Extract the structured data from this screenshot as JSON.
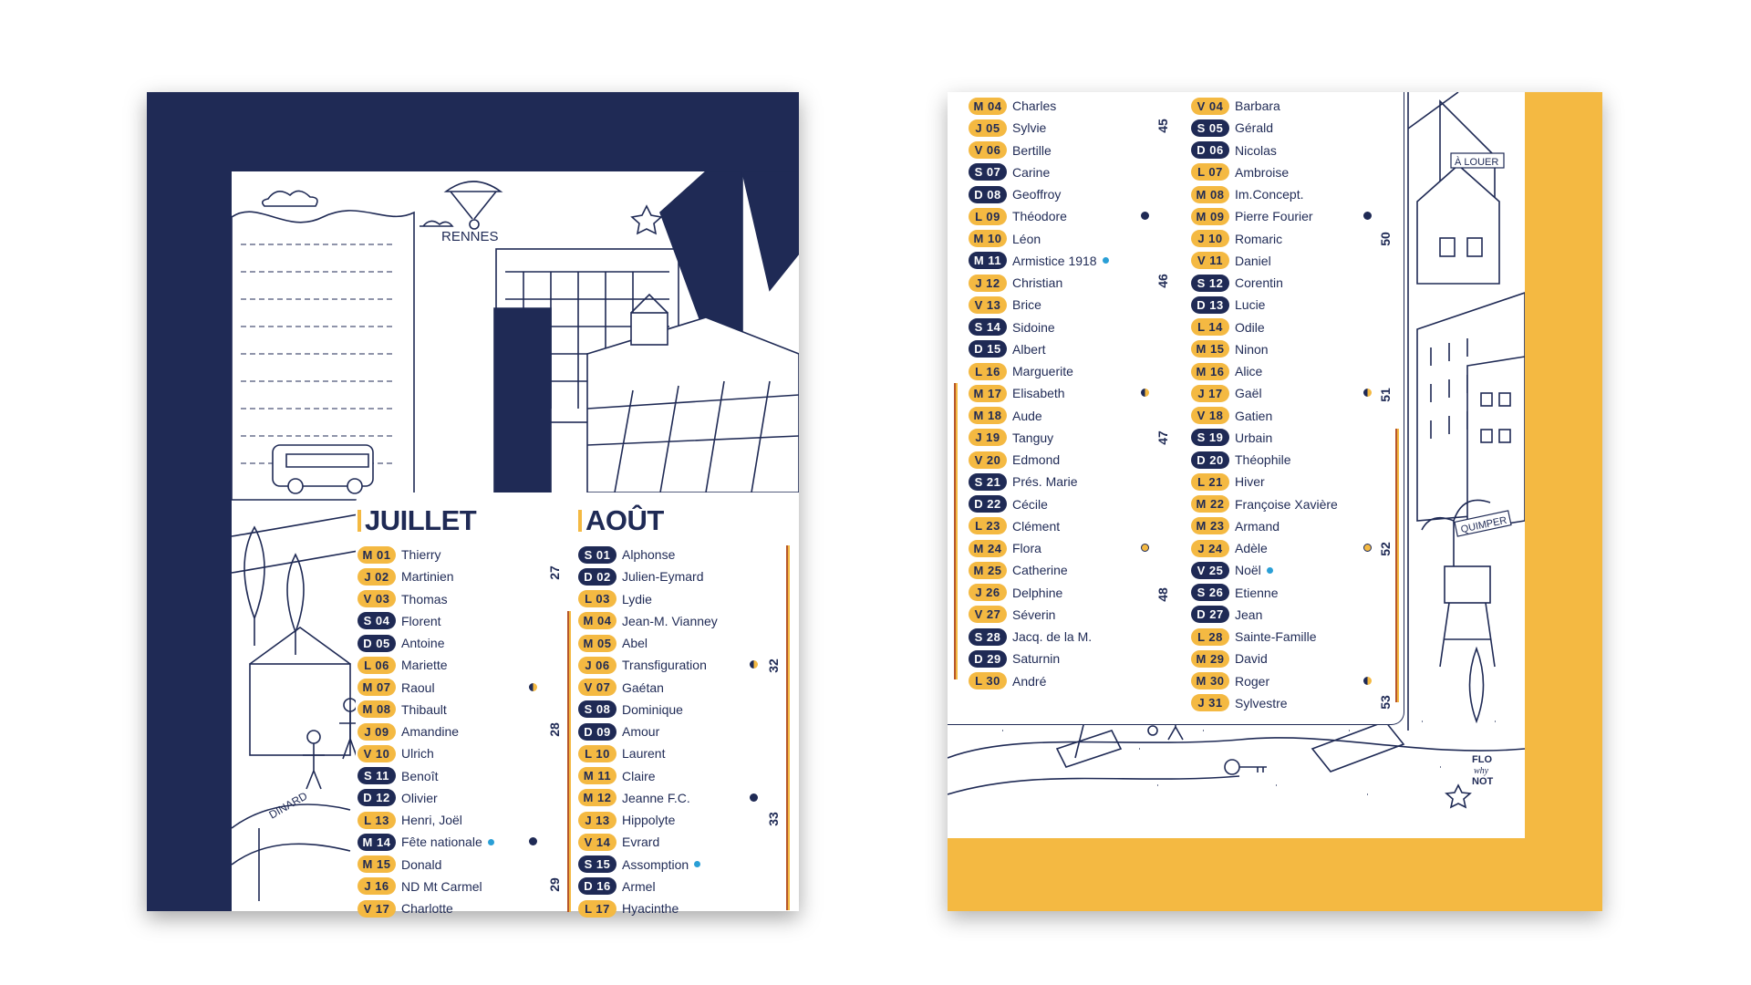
{
  "colors": {
    "navy": "#1f2a55",
    "yellow": "#f4b942",
    "holiday": "#2a9fd6"
  },
  "left_poster": {
    "illustration_labels": {
      "rennes": "RENNES",
      "dinard": "DINARD"
    },
    "months": [
      {
        "title": "JUILLET",
        "week_numbers": [
          "27",
          "28",
          "29"
        ],
        "days": [
          {
            "tag": "M 01",
            "name": "Thierry",
            "weekend": false,
            "holiday": false
          },
          {
            "tag": "J 02",
            "name": "Martinien",
            "weekend": false,
            "holiday": false
          },
          {
            "tag": "V 03",
            "name": "Thomas",
            "weekend": false,
            "holiday": false
          },
          {
            "tag": "S 04",
            "name": "Florent",
            "weekend": true,
            "holiday": false
          },
          {
            "tag": "D 05",
            "name": "Antoine",
            "weekend": true,
            "holiday": false
          },
          {
            "tag": "L 06",
            "name": "Mariette",
            "weekend": false,
            "holiday": false
          },
          {
            "tag": "M 07",
            "name": "Raoul",
            "weekend": false,
            "holiday": false,
            "moon": "half"
          },
          {
            "tag": "M 08",
            "name": "Thibault",
            "weekend": false,
            "holiday": false
          },
          {
            "tag": "J 09",
            "name": "Amandine",
            "weekend": false,
            "holiday": false
          },
          {
            "tag": "V 10",
            "name": "Ulrich",
            "weekend": false,
            "holiday": false
          },
          {
            "tag": "S 11",
            "name": "Benoît",
            "weekend": true,
            "holiday": false
          },
          {
            "tag": "D 12",
            "name": "Olivier",
            "weekend": true,
            "holiday": false
          },
          {
            "tag": "L 13",
            "name": "Henri, Joël",
            "weekend": false,
            "holiday": false
          },
          {
            "tag": "M 14",
            "name": "Fête nationale",
            "weekend": true,
            "holiday": true,
            "moon": "new"
          },
          {
            "tag": "M 15",
            "name": "Donald",
            "weekend": false,
            "holiday": false
          },
          {
            "tag": "J 16",
            "name": "ND Mt Carmel",
            "weekend": false,
            "holiday": false
          },
          {
            "tag": "V 17",
            "name": "Charlotte",
            "weekend": false,
            "holiday": false
          }
        ]
      },
      {
        "title": "AOÛT",
        "week_numbers": [
          "32",
          "33"
        ],
        "days": [
          {
            "tag": "S 01",
            "name": "Alphonse",
            "weekend": true,
            "holiday": false
          },
          {
            "tag": "D 02",
            "name": "Julien-Eymard",
            "weekend": true,
            "holiday": false
          },
          {
            "tag": "L 03",
            "name": "Lydie",
            "weekend": false,
            "holiday": false
          },
          {
            "tag": "M 04",
            "name": "Jean-M. Vianney",
            "weekend": false,
            "holiday": false
          },
          {
            "tag": "M 05",
            "name": "Abel",
            "weekend": false,
            "holiday": false
          },
          {
            "tag": "J 06",
            "name": "Transfiguration",
            "weekend": false,
            "holiday": false,
            "moon": "half"
          },
          {
            "tag": "V 07",
            "name": "Gaétan",
            "weekend": false,
            "holiday": false
          },
          {
            "tag": "S 08",
            "name": "Dominique",
            "weekend": true,
            "holiday": false
          },
          {
            "tag": "D 09",
            "name": "Amour",
            "weekend": true,
            "holiday": false
          },
          {
            "tag": "L 10",
            "name": "Laurent",
            "weekend": false,
            "holiday": false
          },
          {
            "tag": "M 11",
            "name": "Claire",
            "weekend": false,
            "holiday": false
          },
          {
            "tag": "M 12",
            "name": "Jeanne F.C.",
            "weekend": false,
            "holiday": false,
            "moon": "new"
          },
          {
            "tag": "J 13",
            "name": "Hippolyte",
            "weekend": false,
            "holiday": false
          },
          {
            "tag": "V 14",
            "name": "Evrard",
            "weekend": false,
            "holiday": false
          },
          {
            "tag": "S 15",
            "name": "Assomption",
            "weekend": true,
            "holiday": true
          },
          {
            "tag": "D 16",
            "name": "Armel",
            "weekend": true,
            "holiday": false
          },
          {
            "tag": "L 17",
            "name": "Hyacinthe",
            "weekend": false,
            "holiday": false
          }
        ]
      }
    ]
  },
  "right_poster": {
    "illustration_labels": {
      "a_louer": "À LOUER",
      "quimper": "QUIMPER",
      "brand": [
        "FLO",
        "why",
        "NOT"
      ]
    },
    "months": [
      {
        "week_numbers": [
          "45",
          "46",
          "47",
          "48"
        ],
        "days": [
          {
            "tag": "M 04",
            "name": "Charles",
            "weekend": false,
            "holiday": false
          },
          {
            "tag": "J 05",
            "name": "Sylvie",
            "weekend": false,
            "holiday": false
          },
          {
            "tag": "V 06",
            "name": "Bertille",
            "weekend": false,
            "holiday": false
          },
          {
            "tag": "S 07",
            "name": "Carine",
            "weekend": true,
            "holiday": false
          },
          {
            "tag": "D 08",
            "name": "Geoffroy",
            "weekend": true,
            "holiday": false
          },
          {
            "tag": "L 09",
            "name": "Théodore",
            "weekend": false,
            "holiday": false,
            "moon": "new"
          },
          {
            "tag": "M 10",
            "name": "Léon",
            "weekend": false,
            "holiday": false
          },
          {
            "tag": "M 11",
            "name": "Armistice 1918",
            "weekend": true,
            "holiday": true
          },
          {
            "tag": "J 12",
            "name": "Christian",
            "weekend": false,
            "holiday": false
          },
          {
            "tag": "V 13",
            "name": "Brice",
            "weekend": false,
            "holiday": false
          },
          {
            "tag": "S 14",
            "name": "Sidoine",
            "weekend": true,
            "holiday": false
          },
          {
            "tag": "D 15",
            "name": "Albert",
            "weekend": true,
            "holiday": false
          },
          {
            "tag": "L 16",
            "name": "Marguerite",
            "weekend": false,
            "holiday": false
          },
          {
            "tag": "M 17",
            "name": "Elisabeth",
            "weekend": false,
            "holiday": false,
            "moon": "half"
          },
          {
            "tag": "M 18",
            "name": "Aude",
            "weekend": false,
            "holiday": false
          },
          {
            "tag": "J 19",
            "name": "Tanguy",
            "weekend": false,
            "holiday": false
          },
          {
            "tag": "V 20",
            "name": "Edmond",
            "weekend": false,
            "holiday": false
          },
          {
            "tag": "S 21",
            "name": "Prés. Marie",
            "weekend": true,
            "holiday": false
          },
          {
            "tag": "D 22",
            "name": "Cécile",
            "weekend": true,
            "holiday": false
          },
          {
            "tag": "L 23",
            "name": "Clément",
            "weekend": false,
            "holiday": false
          },
          {
            "tag": "M 24",
            "name": "Flora",
            "weekend": false,
            "holiday": false,
            "moon": "full"
          },
          {
            "tag": "M 25",
            "name": "Catherine",
            "weekend": false,
            "holiday": false
          },
          {
            "tag": "J 26",
            "name": "Delphine",
            "weekend": false,
            "holiday": false
          },
          {
            "tag": "V 27",
            "name": "Séverin",
            "weekend": false,
            "holiday": false
          },
          {
            "tag": "S 28",
            "name": "Jacq. de la M.",
            "weekend": true,
            "holiday": false
          },
          {
            "tag": "D 29",
            "name": "Saturnin",
            "weekend": true,
            "holiday": false
          },
          {
            "tag": "L 30",
            "name": "André",
            "weekend": false,
            "holiday": false
          }
        ]
      },
      {
        "week_numbers": [
          "50",
          "51",
          "52",
          "53"
        ],
        "days": [
          {
            "tag": "V 04",
            "name": "Barbara",
            "weekend": false,
            "holiday": false
          },
          {
            "tag": "S 05",
            "name": "Gérald",
            "weekend": true,
            "holiday": false
          },
          {
            "tag": "D 06",
            "name": "Nicolas",
            "weekend": true,
            "holiday": false
          },
          {
            "tag": "L 07",
            "name": "Ambroise",
            "weekend": false,
            "holiday": false
          },
          {
            "tag": "M 08",
            "name": "Im.Concept.",
            "weekend": false,
            "holiday": false
          },
          {
            "tag": "M 09",
            "name": "Pierre Fourier",
            "weekend": false,
            "holiday": false,
            "moon": "new"
          },
          {
            "tag": "J 10",
            "name": "Romaric",
            "weekend": false,
            "holiday": false
          },
          {
            "tag": "V 11",
            "name": "Daniel",
            "weekend": false,
            "holiday": false
          },
          {
            "tag": "S 12",
            "name": "Corentin",
            "weekend": true,
            "holiday": false
          },
          {
            "tag": "D 13",
            "name": "Lucie",
            "weekend": true,
            "holiday": false
          },
          {
            "tag": "L 14",
            "name": "Odile",
            "weekend": false,
            "holiday": false
          },
          {
            "tag": "M 15",
            "name": "Ninon",
            "weekend": false,
            "holiday": false
          },
          {
            "tag": "M 16",
            "name": "Alice",
            "weekend": false,
            "holiday": false
          },
          {
            "tag": "J 17",
            "name": "Gaël",
            "weekend": false,
            "holiday": false,
            "moon": "half"
          },
          {
            "tag": "V 18",
            "name": "Gatien",
            "weekend": false,
            "holiday": false
          },
          {
            "tag": "S 19",
            "name": "Urbain",
            "weekend": true,
            "holiday": false
          },
          {
            "tag": "D 20",
            "name": "Théophile",
            "weekend": true,
            "holiday": false
          },
          {
            "tag": "L 21",
            "name": "Hiver",
            "weekend": false,
            "holiday": false
          },
          {
            "tag": "M 22",
            "name": "Françoise Xavière",
            "weekend": false,
            "holiday": false
          },
          {
            "tag": "M 23",
            "name": "Armand",
            "weekend": false,
            "holiday": false
          },
          {
            "tag": "J 24",
            "name": "Adèle",
            "weekend": false,
            "holiday": false,
            "moon": "full"
          },
          {
            "tag": "V 25",
            "name": "Noël",
            "weekend": true,
            "holiday": true
          },
          {
            "tag": "S 26",
            "name": "Etienne",
            "weekend": true,
            "holiday": false
          },
          {
            "tag": "D 27",
            "name": "Jean",
            "weekend": true,
            "holiday": false
          },
          {
            "tag": "L 28",
            "name": "Sainte-Famille",
            "weekend": false,
            "holiday": false
          },
          {
            "tag": "M 29",
            "name": "David",
            "weekend": false,
            "holiday": false
          },
          {
            "tag": "M 30",
            "name": "Roger",
            "weekend": false,
            "holiday": false,
            "moon": "half"
          },
          {
            "tag": "J 31",
            "name": "Sylvestre",
            "weekend": false,
            "holiday": false
          }
        ]
      }
    ]
  }
}
